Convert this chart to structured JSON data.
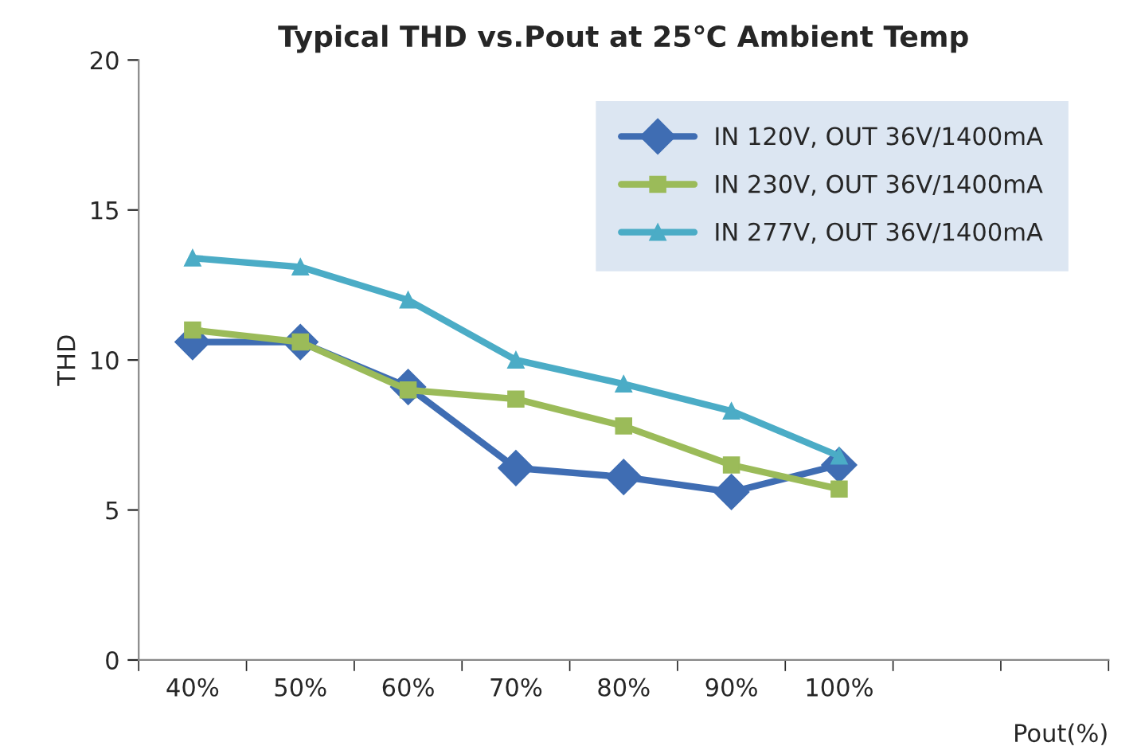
{
  "chart_data": {
    "type": "line",
    "title": "Typical THD vs.Pout at 25℃ Ambient Temp",
    "xlabel": "Pout(%)",
    "ylabel": "THD",
    "categories": [
      "40%",
      "50%",
      "60%",
      "70%",
      "80%",
      "90%",
      "100%",
      null,
      null
    ],
    "ylim": [
      0,
      20
    ],
    "yticks": [
      0,
      5,
      10,
      15,
      20
    ],
    "grid": false,
    "legend": "top right",
    "series": [
      {
        "name": "IN 120V, OUT 36V/1400mA",
        "color": "#3f6db3",
        "marker": "diamond",
        "values": [
          10.6,
          10.6,
          9.1,
          6.4,
          6.1,
          5.6,
          6.5,
          null,
          null
        ]
      },
      {
        "name": "IN 230V, OUT 36V/1400mA",
        "color": "#9bbb59",
        "marker": "square",
        "values": [
          11.0,
          10.6,
          9.0,
          8.7,
          7.8,
          6.5,
          5.7,
          null,
          null
        ]
      },
      {
        "name": "IN 277V, OUT 36V/1400mA",
        "color": "#4bacc6",
        "marker": "triangle",
        "values": [
          13.4,
          13.1,
          12.0,
          10.0,
          9.2,
          8.3,
          6.8,
          null,
          null
        ]
      }
    ]
  }
}
